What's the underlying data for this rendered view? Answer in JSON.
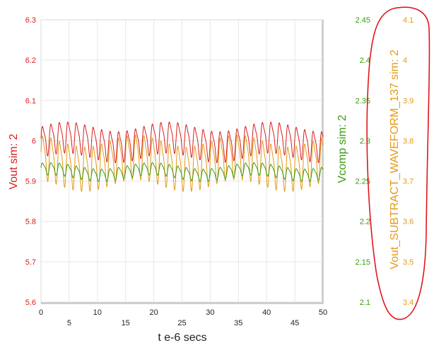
{
  "chart_data": {
    "type": "line",
    "title": "",
    "xlabel": "t e-6 secs",
    "xlim": [
      0,
      50
    ],
    "x_ticks_major": [
      "0",
      "10",
      "20",
      "30",
      "40",
      "50"
    ],
    "x_ticks_minor": [
      "5",
      "15",
      "25",
      "35",
      "45"
    ],
    "grid": true,
    "axes": {
      "left": {
        "label": "Vout sim:  2",
        "color": "#d81e1e",
        "ylim": [
          5.6,
          6.3
        ],
        "ticks": [
          "6.3",
          "6.2",
          "6.1",
          "6",
          "5.9",
          "5.8",
          "5.7",
          "5.6"
        ]
      },
      "right1": {
        "label": "Vcomp sim:  2",
        "color": "#3a9a10",
        "ylim": [
          2.1,
          2.45
        ],
        "ticks": [
          "2.45",
          "2.4",
          "2.35",
          "2.3",
          "2.25",
          "2.2",
          "2.15",
          "2.1"
        ]
      },
      "right2": {
        "label": "Vout_SUBTRACT_WAVEFORM_137 sim:  2",
        "color": "#e39a16",
        "ylim": [
          3.4,
          4.1
        ],
        "ticks": [
          "4.1",
          "4",
          "3.9",
          "3.8",
          "3.7",
          "3.6",
          "3.5",
          "3.4"
        ]
      }
    },
    "series": [
      {
        "name": "Vout sim:  2",
        "axis": "left",
        "color": "#d81e1e",
        "period": 1.5,
        "base": 6.0,
        "amplitude": 0.035,
        "envelope_amp": 0.012,
        "envelope_period": 18
      },
      {
        "name": "Vcomp sim:  2",
        "axis": "right1",
        "color": "#3a9a10",
        "period": 1.5,
        "base": 2.262,
        "amplitude": 0.007,
        "envelope_amp": 0.004,
        "envelope_period": 18
      },
      {
        "name": "Vout_SUBTRACT_WAVEFORM_137 sim:  2",
        "axis": "right2",
        "color": "#e39a16",
        "period": 1.5,
        "base": 3.75,
        "amplitude": 0.05,
        "envelope_amp": 0.015,
        "envelope_period": 18
      }
    ]
  },
  "annotation": {
    "color": "#e0161b"
  }
}
